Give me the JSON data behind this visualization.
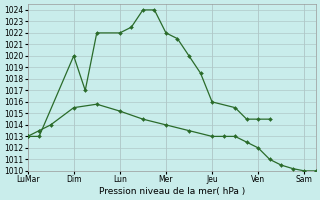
{
  "xlabel": "Pression niveau de la mer( hPa )",
  "ylim": [
    1010,
    1024.5
  ],
  "ytick_min": 1010,
  "ytick_max": 1024,
  "bg_color": "#c9edeb",
  "grid_color": "#b0c8c8",
  "line_color": "#2a6b2a",
  "day_labels": [
    "LuMar",
    "Dim",
    "Lun",
    "Mer",
    "Jeu",
    "Ven",
    "Sam"
  ],
  "day_positions": [
    0,
    2,
    4,
    6,
    8,
    10,
    12
  ],
  "xlim": [
    0,
    12.5
  ],
  "line1_x": [
    0,
    0.5,
    2.0,
    2.5,
    3.0,
    4.0,
    4.5,
    5.0,
    5.5,
    6.0,
    6.5,
    7.0,
    7.5,
    8.0,
    9.0,
    9.5,
    10.0,
    10.5
  ],
  "line1_y": [
    1013,
    1013,
    1020,
    1017,
    1022,
    1022,
    1022.5,
    1024,
    1024,
    1022,
    1021.5,
    1020,
    1018.5,
    1016,
    1015.5,
    1014.5,
    1014.5,
    1014.5
  ],
  "line2_x": [
    0,
    0.5,
    1.0,
    2.0,
    3.0,
    4.0,
    5.0,
    6.0,
    7.0,
    8.0,
    8.5,
    9.0,
    9.5,
    10.0,
    10.5,
    11.0,
    11.5,
    12.0,
    12.5
  ],
  "line2_y": [
    1013,
    1013.5,
    1014,
    1015.5,
    1015.8,
    1015.2,
    1014.5,
    1014,
    1013.5,
    1013,
    1013,
    1013,
    1012.5,
    1012,
    1011,
    1010.5,
    1010.2,
    1010,
    1010
  ]
}
